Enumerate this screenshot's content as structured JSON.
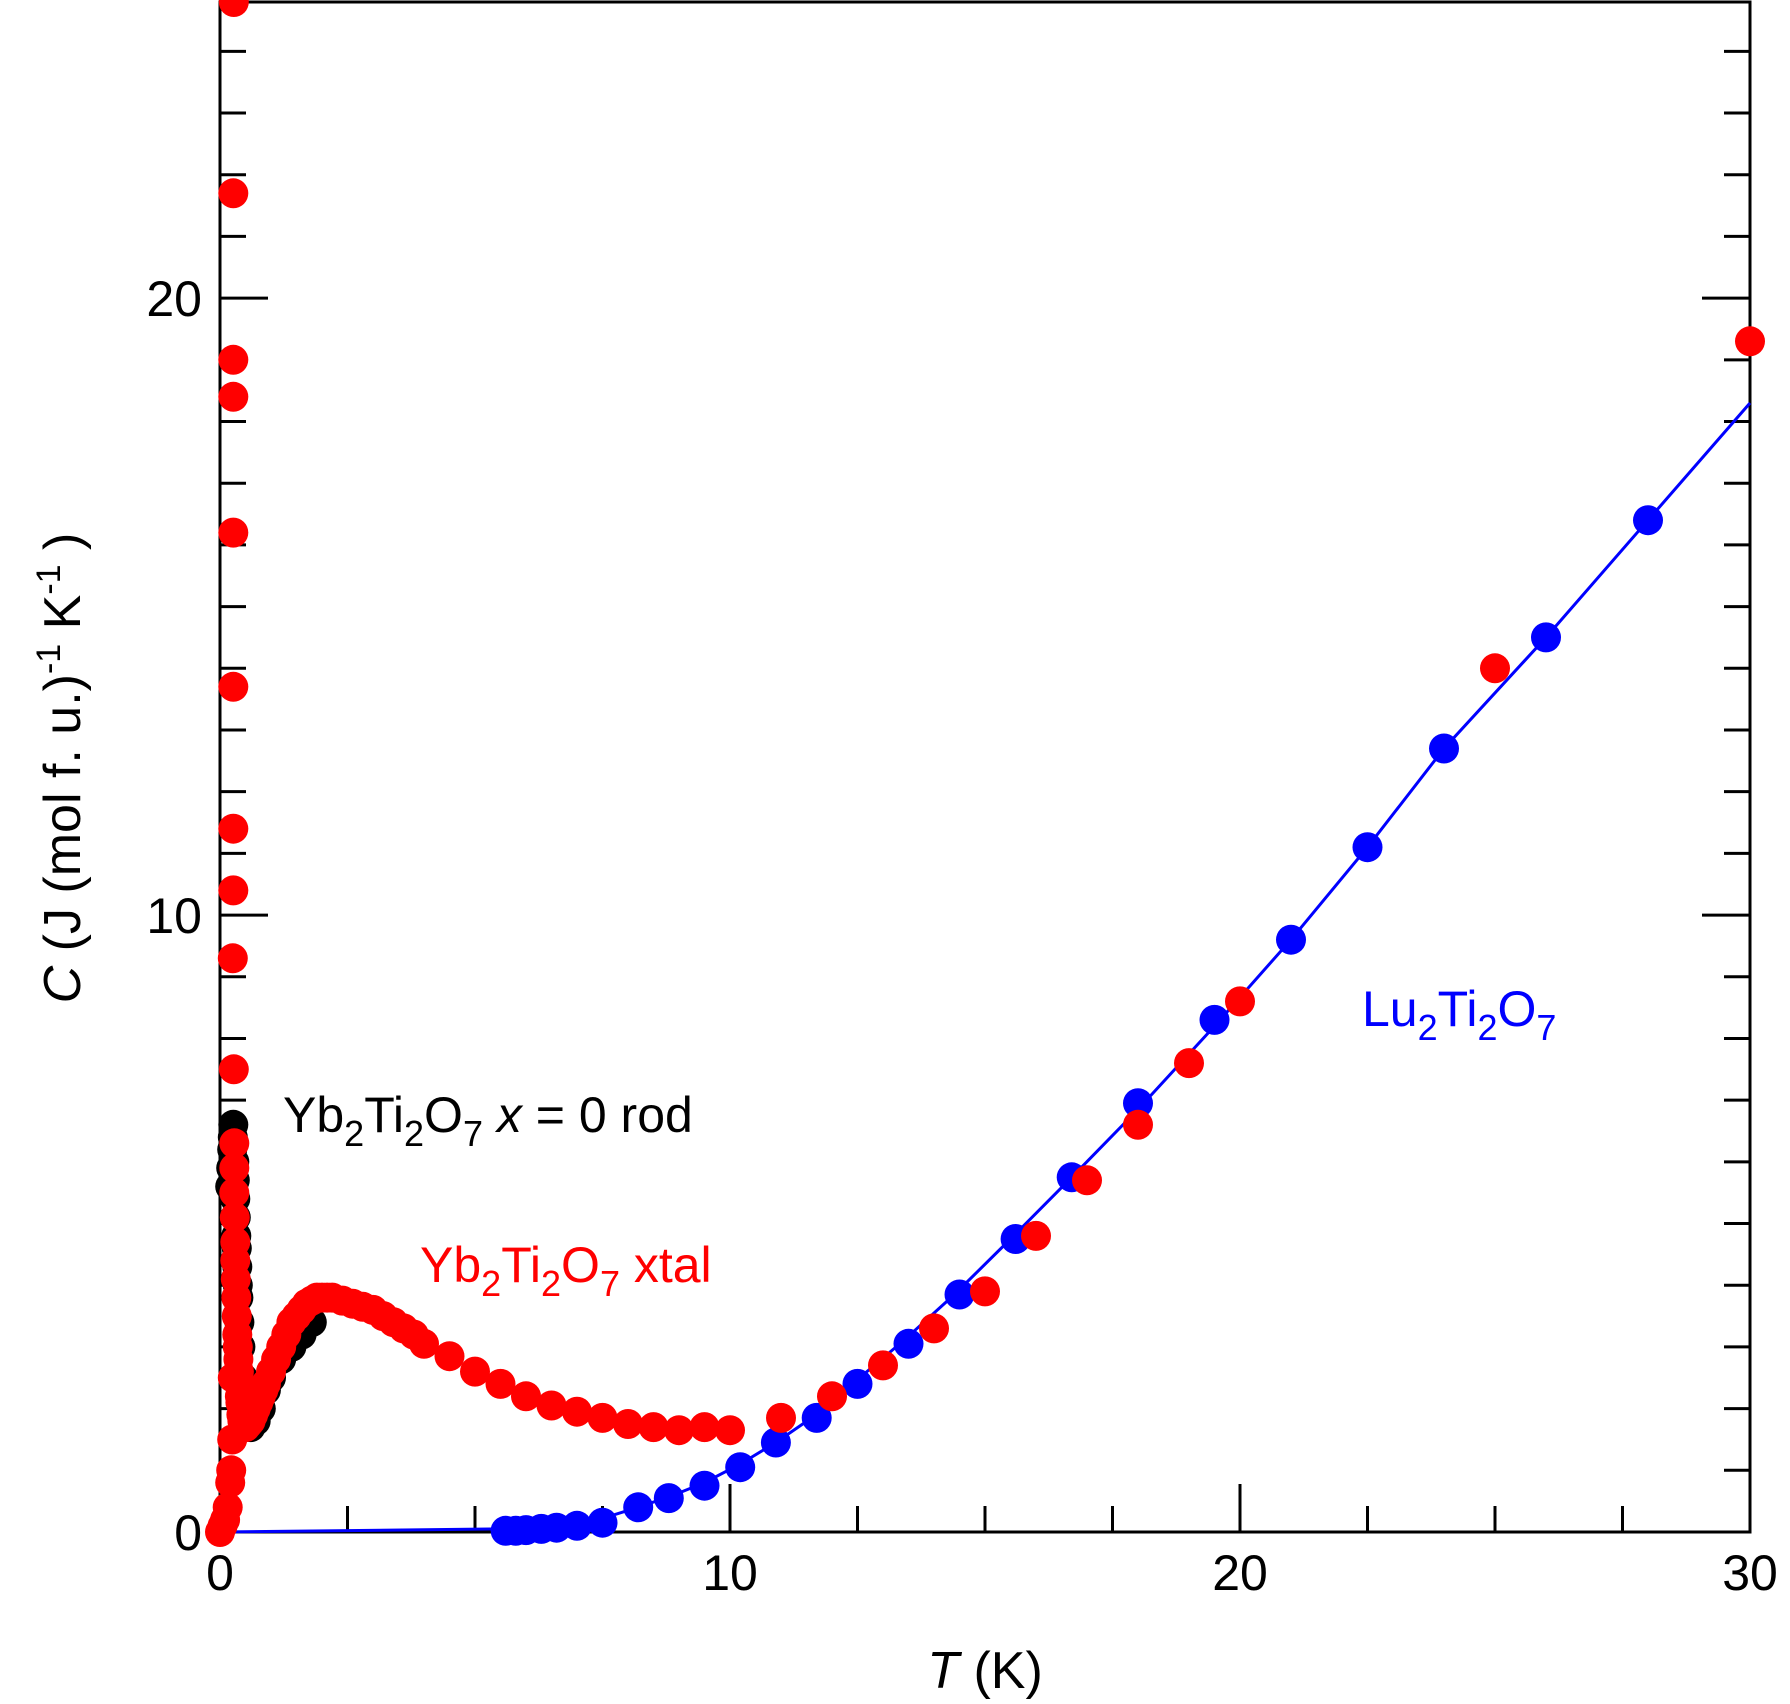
{
  "chart_data": {
    "type": "scatter",
    "xlabel": {
      "symbol": "T",
      "unit": "(K)"
    },
    "ylabel": {
      "symbol": "C",
      "unit_main": "(J (mol f. u.)",
      "exp1": "-1",
      "unit_k": "K",
      "exp2": "-1",
      "close": ")"
    },
    "xlim": [
      0,
      30
    ],
    "ylim": [
      0,
      24.8
    ],
    "x_major_ticks": [
      0,
      10,
      20,
      30
    ],
    "x_tick_labels": [
      "0",
      "10",
      "20",
      "30"
    ],
    "y_major_ticks": [
      0,
      10,
      20
    ],
    "y_tick_labels": [
      "0",
      "10",
      "20"
    ],
    "grid": false,
    "series": [
      {
        "label": {
          "formula_main": "Yb",
          "sub1": "2",
          "mid": "Ti",
          "sub2": "2",
          "o": "O",
          "sub3": "7",
          "var": "x",
          "rest": " = 0 rod"
        },
        "color": "#000000",
        "marker": "filled-circle",
        "x": [
          0.2,
          0.22,
          0.24,
          0.25,
          0.26,
          0.27,
          0.28,
          0.29,
          0.3,
          0.31,
          0.32,
          0.33,
          0.34,
          0.35,
          0.36,
          0.38,
          0.4,
          0.45,
          0.5,
          0.6,
          0.7,
          0.8,
          0.9,
          1.0,
          1.2,
          1.4,
          1.6,
          1.8
        ],
        "y": [
          5.6,
          5.9,
          6.2,
          6.4,
          6.6,
          6.3,
          6.0,
          5.7,
          5.4,
          5.1,
          4.8,
          4.6,
          4.3,
          4.0,
          3.8,
          3.4,
          3.0,
          2.5,
          2.1,
          1.7,
          1.8,
          2.0,
          2.3,
          2.5,
          2.8,
          3.0,
          3.2,
          3.4
        ]
      },
      {
        "label": {
          "formula_main": "Yb",
          "sub1": "2",
          "mid": "Ti",
          "sub2": "2",
          "o": "O",
          "sub3": "7",
          "rest": " xtal"
        },
        "color": "#ff0000",
        "marker": "filled-circle",
        "x": [
          0.0,
          0.05,
          0.1,
          0.15,
          0.2,
          0.22,
          0.24,
          0.25,
          0.25,
          0.26,
          0.26,
          0.26,
          0.26,
          0.26,
          0.26,
          0.26,
          0.27,
          0.27,
          0.28,
          0.28,
          0.28,
          0.29,
          0.3,
          0.3,
          0.31,
          0.32,
          0.33,
          0.34,
          0.35,
          0.36,
          0.37,
          0.38,
          0.39,
          0.4,
          0.42,
          0.44,
          0.46,
          0.48,
          0.5,
          0.55,
          0.6,
          0.65,
          0.7,
          0.75,
          0.8,
          0.85,
          0.9,
          1.0,
          1.1,
          1.2,
          1.3,
          1.4,
          1.5,
          1.6,
          1.7,
          1.8,
          1.9,
          2.0,
          2.1,
          2.2,
          2.4,
          2.6,
          2.8,
          3.0,
          3.2,
          3.4,
          3.6,
          3.8,
          4.0,
          4.5,
          5.0,
          5.5,
          6.0,
          6.5,
          7.0,
          7.5,
          8.0,
          8.5,
          9.0,
          9.5,
          10.0,
          11.0,
          12.0,
          13.0,
          14.0,
          15.0,
          16.0,
          17.0,
          18.0,
          19.0,
          20.0,
          25.0,
          30.0
        ],
        "y": [
          0.0,
          0.1,
          0.2,
          0.4,
          0.8,
          1.0,
          1.5,
          2.5,
          9.3,
          10.4,
          11.4,
          13.7,
          16.2,
          18.4,
          19.0,
          21.7,
          24.8,
          7.5,
          6.3,
          5.9,
          5.5,
          5.1,
          4.7,
          4.4,
          4.1,
          3.8,
          3.5,
          3.2,
          3.0,
          2.8,
          2.6,
          2.4,
          2.2,
          2.1,
          1.9,
          1.8,
          1.75,
          1.7,
          1.7,
          1.75,
          1.8,
          1.9,
          2.0,
          2.1,
          2.2,
          2.3,
          2.4,
          2.6,
          2.8,
          3.0,
          3.2,
          3.4,
          3.5,
          3.6,
          3.7,
          3.75,
          3.8,
          3.8,
          3.8,
          3.8,
          3.75,
          3.7,
          3.65,
          3.6,
          3.5,
          3.4,
          3.3,
          3.2,
          3.05,
          2.85,
          2.6,
          2.4,
          2.2,
          2.05,
          1.95,
          1.85,
          1.75,
          1.7,
          1.65,
          1.7,
          1.65,
          1.85,
          2.2,
          2.7,
          3.3,
          3.9,
          4.8,
          5.7,
          6.6,
          7.6,
          8.6,
          14.0,
          19.3
        ]
      },
      {
        "label": {
          "formula_main": "Lu",
          "sub1": "2",
          "mid": "Ti",
          "sub2": "2",
          "o": "O",
          "sub3": "7"
        },
        "color": "#0000ff",
        "marker": "filled-circle",
        "fit_line": true,
        "fit_x": [
          0,
          5.5,
          6.5,
          7.5,
          8.2,
          8.9,
          9.5,
          10.2,
          10.9,
          11.6,
          12.4,
          13.4,
          14.4,
          15.5,
          16.7,
          18.0,
          19.5,
          21.0,
          22.5,
          24.0,
          26.0,
          28.0,
          30.0
        ],
        "fit_y": [
          0.0,
          0.05,
          0.12,
          0.22,
          0.4,
          0.6,
          0.8,
          1.1,
          1.45,
          1.85,
          2.4,
          3.1,
          3.85,
          4.75,
          5.75,
          6.85,
          8.2,
          9.6,
          11.1,
          12.7,
          14.5,
          16.4,
          18.3
        ],
        "x": [
          5.6,
          5.8,
          6.0,
          6.3,
          6.6,
          7.0,
          7.5,
          8.2,
          8.8,
          9.5,
          10.2,
          10.9,
          11.7,
          12.5,
          13.5,
          14.5,
          15.6,
          16.7,
          18.0,
          19.5,
          21.0,
          22.5,
          24.0,
          26.0,
          28.0
        ],
        "y": [
          0.02,
          0.02,
          0.03,
          0.05,
          0.07,
          0.1,
          0.15,
          0.4,
          0.55,
          0.75,
          1.05,
          1.45,
          1.85,
          2.4,
          3.05,
          3.85,
          4.75,
          5.75,
          6.95,
          8.3,
          9.6,
          11.1,
          12.7,
          14.5,
          16.4
        ]
      }
    ]
  }
}
